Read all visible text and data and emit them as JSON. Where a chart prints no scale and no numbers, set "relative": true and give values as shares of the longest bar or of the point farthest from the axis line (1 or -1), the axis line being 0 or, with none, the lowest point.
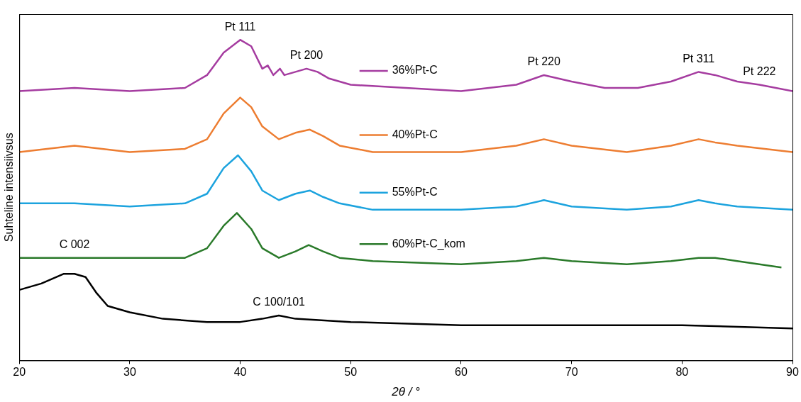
{
  "chart_data": {
    "type": "line",
    "relative": true,
    "xlabel": "2θ / °",
    "ylabel": "Suhteline intensiivsus",
    "xlim": [
      20,
      90
    ],
    "xticks": [
      20,
      30,
      40,
      50,
      60,
      70,
      80,
      90
    ],
    "grid": false,
    "legend": "center",
    "marker": "none",
    "line_style": "solid",
    "series": [
      {
        "name": "36%Pt-C",
        "color": "#a53ca0",
        "x": [
          20,
          25,
          30,
          35,
          37,
          38.5,
          40,
          41,
          42,
          42.5,
          43,
          43.6,
          44,
          45,
          46,
          47,
          48,
          50,
          55,
          60,
          65,
          67.5,
          70,
          73,
          76,
          79,
          81.5,
          83,
          85,
          87,
          90
        ],
        "values": [
          0.84,
          0.85,
          0.84,
          0.85,
          0.89,
          0.96,
          1,
          0.98,
          0.91,
          0.92,
          0.89,
          0.91,
          0.89,
          0.9,
          0.91,
          0.9,
          0.88,
          0.86,
          0.85,
          0.84,
          0.86,
          0.89,
          0.87,
          0.85,
          0.85,
          0.87,
          0.9,
          0.89,
          0.87,
          0.86,
          0.84
        ]
      },
      {
        "name": "40%Pt-C",
        "color": "#ed7d31",
        "x": [
          20,
          25,
          30,
          35,
          37,
          38.5,
          40,
          41,
          42,
          43.5,
          45,
          46.3,
          47.5,
          49,
          52,
          60,
          65,
          67.5,
          70,
          75,
          79,
          81.5,
          83,
          85,
          90
        ],
        "values": [
          0.65,
          0.67,
          0.65,
          0.66,
          0.69,
          0.77,
          0.82,
          0.79,
          0.73,
          0.69,
          0.71,
          0.72,
          0.7,
          0.67,
          0.65,
          0.65,
          0.67,
          0.69,
          0.67,
          0.65,
          0.67,
          0.69,
          0.68,
          0.67,
          0.65
        ]
      },
      {
        "name": "55%Pt-C",
        "color": "#1ca3de",
        "x": [
          20,
          25,
          30,
          35,
          37,
          38.5,
          39.8,
          41,
          42,
          43.5,
          45,
          46.3,
          47.5,
          49,
          52,
          60,
          65,
          67.5,
          70,
          75,
          79,
          81.5,
          83,
          85,
          90
        ],
        "values": [
          0.49,
          0.49,
          0.48,
          0.49,
          0.52,
          0.6,
          0.64,
          0.59,
          0.53,
          0.5,
          0.52,
          0.53,
          0.51,
          0.49,
          0.47,
          0.47,
          0.48,
          0.5,
          0.48,
          0.47,
          0.48,
          0.5,
          0.49,
          0.48,
          0.47
        ]
      },
      {
        "name": "60%Pt-C_kom",
        "color": "#2a7a2a",
        "x": [
          20,
          25,
          30,
          35,
          37,
          38.5,
          39.7,
          41,
          42,
          43.5,
          45,
          46.2,
          47.5,
          49,
          52,
          60,
          65,
          67.5,
          70,
          75,
          79,
          81.5,
          83,
          85,
          89
        ],
        "values": [
          0.32,
          0.32,
          0.32,
          0.32,
          0.35,
          0.42,
          0.46,
          0.41,
          0.35,
          0.32,
          0.34,
          0.36,
          0.34,
          0.32,
          0.31,
          0.3,
          0.31,
          0.32,
          0.31,
          0.3,
          0.31,
          0.32,
          0.32,
          0.31,
          0.29
        ]
      },
      {
        "color": "#000000",
        "x": [
          20,
          21,
          22,
          24,
          25,
          26,
          27,
          28,
          30,
          33,
          37,
          40,
          42,
          43.5,
          45,
          50,
          60,
          70,
          79,
          80,
          90
        ],
        "values": [
          0.22,
          0.23,
          0.24,
          0.27,
          0.27,
          0.26,
          0.21,
          0.17,
          0.15,
          0.13,
          0.12,
          0.12,
          0.13,
          0.14,
          0.13,
          0.12,
          0.11,
          0.11,
          0.11,
          0.11,
          0.1
        ]
      }
    ],
    "annotations": [
      {
        "text": "Pt 111",
        "x": 40,
        "y": 1
      },
      {
        "text": "Pt 200",
        "x": 46,
        "y": 0.91
      },
      {
        "text": "Pt 220",
        "x": 67.5,
        "y": 0.89
      },
      {
        "text": "Pt 311",
        "x": 81.5,
        "y": 0.9
      },
      {
        "text": "Pt 222",
        "x": 87,
        "y": 0.86
      },
      {
        "text": "C 002",
        "x": 25,
        "y": 0.32
      },
      {
        "text": "C 100/101",
        "x": 43.5,
        "y": 0.14
      }
    ]
  }
}
